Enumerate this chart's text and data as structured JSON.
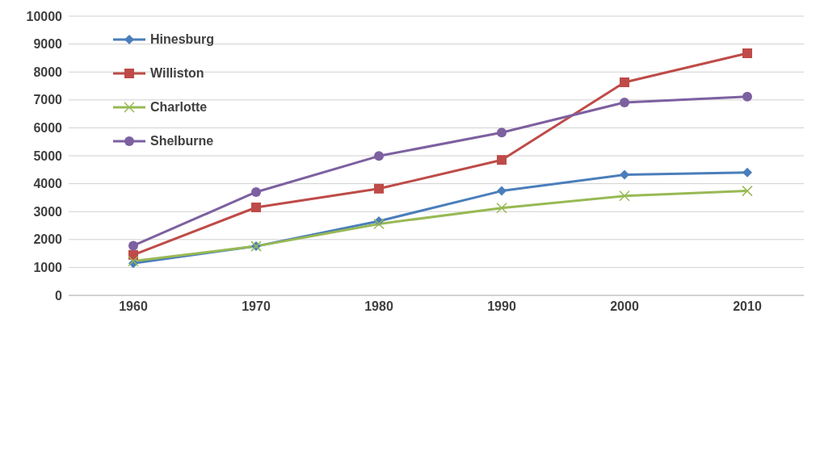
{
  "chart_data": {
    "type": "line",
    "categories": [
      "1960",
      "1970",
      "1980",
      "1990",
      "2000",
      "2010"
    ],
    "series": [
      {
        "name": "Hinesburg",
        "color": "#4a7ebb",
        "marker": "diamond",
        "values": [
          1150,
          1760,
          2660,
          3740,
          4320,
          4400
        ]
      },
      {
        "name": "Williston",
        "color": "#be4b48",
        "marker": "square",
        "values": [
          1450,
          3150,
          3820,
          4850,
          7630,
          8670
        ]
      },
      {
        "name": "Charlotte",
        "color": "#98b954",
        "marker": "cross",
        "values": [
          1230,
          1760,
          2560,
          3130,
          3560,
          3740
        ]
      },
      {
        "name": "Shelburne",
        "color": "#7d60a0",
        "marker": "circle",
        "values": [
          1780,
          3700,
          4990,
          5830,
          6910,
          7120
        ]
      }
    ],
    "ylim": [
      0,
      10000
    ],
    "yticks": [
      0,
      1000,
      2000,
      3000,
      4000,
      5000,
      6000,
      7000,
      8000,
      9000,
      10000
    ],
    "grid": "y",
    "legend": "top left"
  }
}
